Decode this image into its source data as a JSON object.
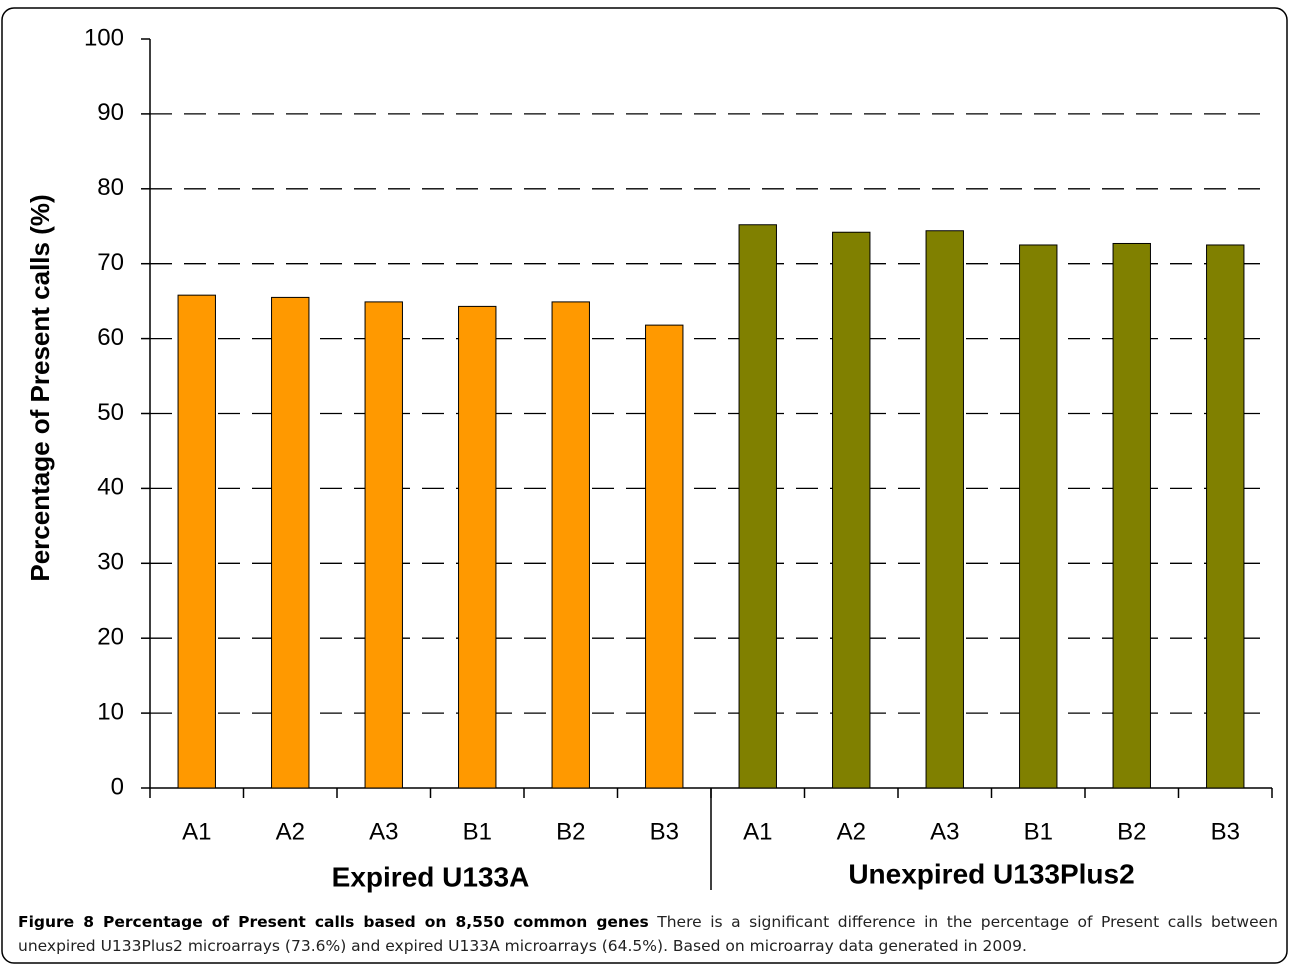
{
  "chart_data": {
    "type": "bar",
    "ylabel": "Percentage of Present calls (%)",
    "ylim": [
      0,
      100
    ],
    "yticks": [
      0,
      10,
      20,
      30,
      40,
      50,
      60,
      70,
      80,
      90,
      100
    ],
    "grid": true,
    "groups": [
      {
        "name": "Expired U133A",
        "color": "#ff9900",
        "categories": [
          "A1",
          "A2",
          "A3",
          "B1",
          "B2",
          "B3"
        ],
        "values": [
          65.8,
          65.5,
          64.9,
          64.3,
          64.9,
          61.8
        ]
      },
      {
        "name": "Unexpired U133Plus2",
        "color": "#808000",
        "categories": [
          "A1",
          "A2",
          "A3",
          "B1",
          "B2",
          "B3"
        ],
        "values": [
          75.2,
          74.2,
          74.4,
          72.5,
          72.7,
          72.5
        ]
      }
    ],
    "caption_title": "Figure 8 Percentage of Present calls based on 8,550 common genes",
    "caption": "There is a significant difference in the percentage of Present calls between unexpired U133Plus2 microarrays (73.6%) and expired U133A microarrays (64.5%). Based on microarray data generated in 2009."
  }
}
